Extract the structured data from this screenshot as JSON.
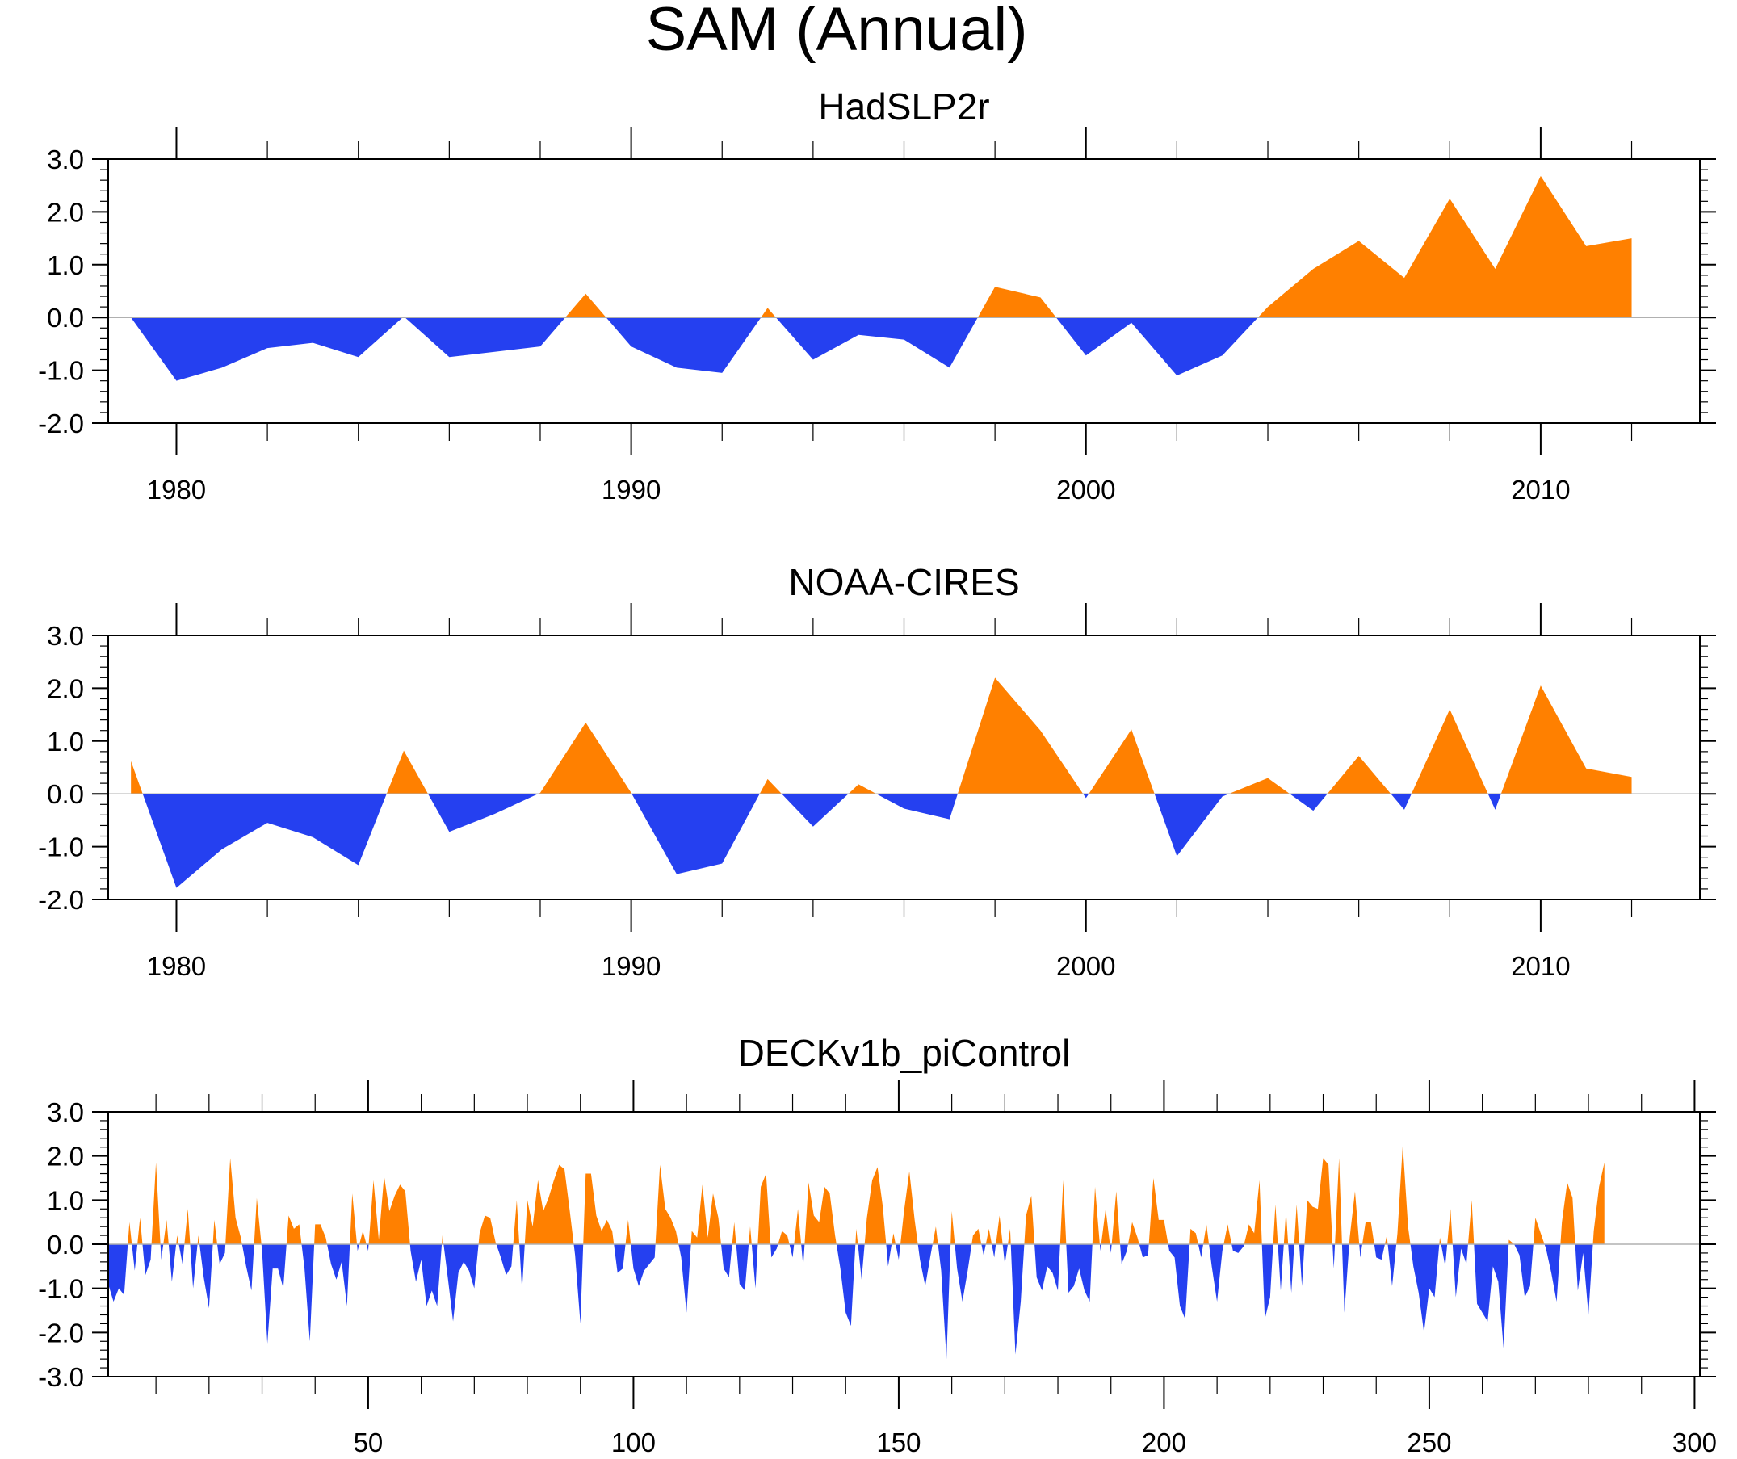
{
  "title": "SAM (Annual)",
  "colors": {
    "positive": "#ff8000",
    "negative": "#2540f0",
    "zero_line": "#b0b0b0"
  },
  "chart_data": [
    {
      "type": "area",
      "title": "HadSLP2r",
      "xlim": [
        1978.5,
        2013.5
      ],
      "ylim": [
        -2,
        3
      ],
      "yticks": [
        -2,
        -1,
        0,
        1,
        2,
        3
      ],
      "ytick_labels": [
        "-2.0",
        "-1.0",
        "0.0",
        "1.0",
        "2.0",
        "3.0"
      ],
      "xticks": [
        1980,
        1990,
        2000,
        2010
      ],
      "xtick_labels": [
        "1980",
        "1990",
        "2000",
        "2010"
      ],
      "xminor": 2,
      "x": [
        1979,
        1980,
        1981,
        1982,
        1983,
        1984,
        1985,
        1986,
        1987,
        1988,
        1989,
        1990,
        1991,
        1992,
        1993,
        1994,
        1995,
        1996,
        1997,
        1998,
        1999,
        2000,
        2001,
        2002,
        2003,
        2004,
        2005,
        2006,
        2007,
        2008,
        2009,
        2010,
        2011,
        2012
      ],
      "values": [
        0.0,
        -1.2,
        -0.95,
        -0.58,
        -0.48,
        -0.75,
        0.02,
        -0.75,
        -0.65,
        -0.55,
        0.45,
        -0.55,
        -0.95,
        -1.05,
        0.18,
        -0.8,
        -0.33,
        -0.42,
        -0.95,
        0.58,
        0.38,
        -0.72,
        -0.1,
        -1.1,
        -0.72,
        0.2,
        0.92,
        1.45,
        0.75,
        2.25,
        0.92,
        2.68,
        1.35,
        1.5
      ]
    },
    {
      "type": "area",
      "title": "NOAA-CIRES",
      "xlim": [
        1978.5,
        2013.5
      ],
      "ylim": [
        -2,
        3
      ],
      "yticks": [
        -2,
        -1,
        0,
        1,
        2,
        3
      ],
      "ytick_labels": [
        "-2.0",
        "-1.0",
        "0.0",
        "1.0",
        "2.0",
        "3.0"
      ],
      "xticks": [
        1980,
        1990,
        2000,
        2010
      ],
      "xtick_labels": [
        "1980",
        "1990",
        "2000",
        "2010"
      ],
      "xminor": 2,
      "x": [
        1979,
        1980,
        1981,
        1982,
        1983,
        1984,
        1985,
        1986,
        1987,
        1988,
        1989,
        1990,
        1991,
        1992,
        1993,
        1994,
        1995,
        1996,
        1997,
        1998,
        1999,
        2000,
        2001,
        2002,
        2003,
        2004,
        2005,
        2006,
        2007,
        2008,
        2009,
        2010,
        2011,
        2012
      ],
      "values": [
        0.62,
        -1.78,
        -1.05,
        -0.55,
        -0.82,
        -1.35,
        0.82,
        -0.72,
        -0.38,
        0.02,
        1.35,
        0.02,
        -1.52,
        -1.32,
        0.28,
        -0.62,
        0.18,
        -0.28,
        -0.48,
        2.2,
        1.2,
        -0.08,
        1.22,
        -1.18,
        -0.05,
        0.3,
        -0.32,
        0.72,
        -0.3,
        1.6,
        -0.3,
        2.05,
        0.48,
        0.32
      ]
    },
    {
      "type": "area",
      "title": "DECKv1b_piControl",
      "xlim": [
        1,
        301
      ],
      "ylim": [
        -3,
        3
      ],
      "yticks": [
        -3,
        -2,
        -1,
        0,
        1,
        2,
        3
      ],
      "ytick_labels": [
        "-3.0",
        "-2.0",
        "-1.0",
        "0.0",
        "1.0",
        "2.0",
        "3.0"
      ],
      "xticks": [
        50,
        100,
        150,
        200,
        250,
        300
      ],
      "xtick_labels": [
        "50",
        "100",
        "150",
        "200",
        "250",
        "300"
      ],
      "xminor": 10,
      "x_start": 1,
      "values": [
        -0.9,
        -1.3,
        -1.0,
        -1.15,
        0.5,
        -0.6,
        0.6,
        -0.7,
        -0.35,
        1.85,
        -0.35,
        0.55,
        -0.85,
        0.2,
        -0.45,
        0.8,
        -1.0,
        0.2,
        -0.75,
        -1.45,
        0.55,
        -0.45,
        -0.2,
        1.95,
        0.6,
        0.15,
        -0.5,
        -1.05,
        1.05,
        -0.15,
        -2.25,
        -0.55,
        -0.55,
        -1.0,
        0.65,
        0.35,
        0.45,
        -0.55,
        -2.2,
        0.45,
        0.45,
        0.15,
        -0.45,
        -0.8,
        -0.4,
        -1.4,
        1.15,
        -0.15,
        0.3,
        -0.15,
        1.45,
        0.1,
        1.55,
        0.75,
        1.1,
        1.35,
        1.2,
        -0.15,
        -0.85,
        -0.35,
        -1.4,
        -1.05,
        -1.4,
        0.2,
        -0.75,
        -1.75,
        -0.65,
        -0.4,
        -0.6,
        -1.0,
        0.25,
        0.65,
        0.6,
        0.05,
        -0.3,
        -0.7,
        -0.5,
        1.0,
        -1.05,
        1.0,
        0.4,
        1.45,
        0.75,
        1.05,
        1.45,
        1.8,
        1.7,
        0.75,
        -0.25,
        -1.8,
        1.6,
        1.6,
        0.65,
        0.3,
        0.55,
        0.3,
        -0.65,
        -0.55,
        0.55,
        -0.55,
        -0.95,
        -0.6,
        -0.45,
        -0.3,
        1.8,
        0.8,
        0.6,
        0.3,
        -0.3,
        -1.55,
        0.3,
        0.15,
        1.35,
        0.15,
        1.15,
        0.6,
        -0.55,
        -0.75,
        0.5,
        -0.9,
        -1.05,
        0.4,
        -1.0,
        1.3,
        1.6,
        -0.3,
        -0.1,
        0.3,
        0.2,
        -0.3,
        0.8,
        -0.5,
        1.4,
        0.65,
        0.5,
        1.3,
        1.15,
        0.2,
        -0.55,
        -1.55,
        -1.85,
        0.35,
        -0.8,
        0.6,
        1.45,
        1.75,
        0.85,
        -0.5,
        0.25,
        -0.35,
        0.75,
        1.65,
        0.55,
        -0.35,
        -0.95,
        -0.25,
        0.4,
        -0.6,
        -2.6,
        0.75,
        -0.55,
        -1.3,
        -0.6,
        0.2,
        0.35,
        -0.25,
        0.35,
        -0.3,
        0.65,
        -0.45,
        0.35,
        -2.5,
        -1.3,
        0.65,
        1.1,
        -0.75,
        -1.05,
        -0.5,
        -0.65,
        -1.05,
        1.45,
        -1.1,
        -0.95,
        -0.55,
        -1.05,
        -1.3,
        1.3,
        -0.15,
        0.8,
        -0.2,
        1.2,
        -0.45,
        -0.15,
        0.5,
        0.15,
        -0.3,
        -0.25,
        1.5,
        0.55,
        0.55,
        -0.15,
        -0.3,
        -1.4,
        -1.7,
        0.35,
        0.25,
        -0.3,
        0.45,
        -0.5,
        -1.3,
        -0.15,
        0.45,
        -0.15,
        -0.2,
        -0.05,
        0.45,
        0.25,
        1.45,
        -1.7,
        -1.2,
        0.9,
        -1.05,
        0.75,
        -1.1,
        0.9,
        -0.95,
        1.0,
        0.85,
        0.8,
        1.95,
        1.8,
        -0.55,
        1.95,
        -1.55,
        0.15,
        1.2,
        -0.3,
        0.5,
        0.5,
        -0.3,
        -0.35,
        0.2,
        -0.95,
        0.25,
        2.25,
        0.4,
        -0.5,
        -1.1,
        -2.0,
        -1.0,
        -1.2,
        0.15,
        -0.5,
        0.8,
        -1.2,
        -0.1,
        -0.45,
        1.0,
        -1.35,
        -1.55,
        -1.75,
        -0.5,
        -0.85,
        -2.35,
        0.1,
        0.0,
        -0.25,
        -1.2,
        -0.95,
        0.6,
        0.25,
        -0.1,
        -0.65,
        -1.3,
        0.5,
        1.4,
        1.05,
        -1.05,
        -0.2,
        -1.6,
        0.3,
        1.3,
        1.85
      ]
    }
  ]
}
